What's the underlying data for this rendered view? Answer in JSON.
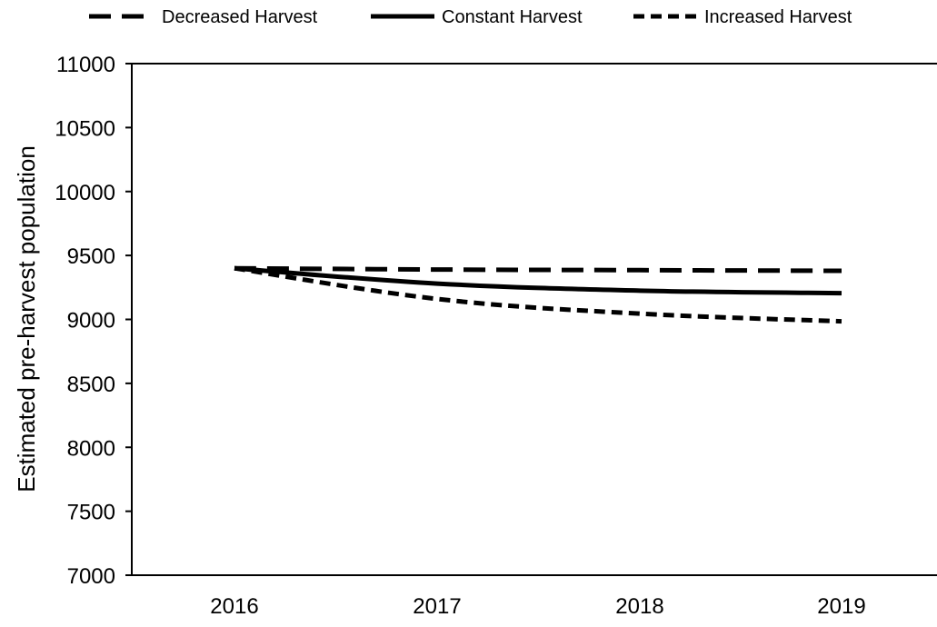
{
  "chart_data": {
    "type": "line",
    "title": "",
    "xlabel": "",
    "ylabel": "Estimated pre-harvest population",
    "categories": [
      "2016",
      "2017",
      "2018",
      "2019"
    ],
    "ylim": [
      7000,
      11000
    ],
    "yticks": [
      7000,
      7500,
      8000,
      8500,
      9000,
      9500,
      10000,
      10500,
      11000
    ],
    "grid": false,
    "legend_position": "top",
    "series": [
      {
        "name": "Decreased Harvest",
        "style": "long-dash",
        "color": "#000000",
        "values": [
          9400,
          9390,
          9385,
          9380
        ]
      },
      {
        "name": "Constant Harvest",
        "style": "solid",
        "color": "#000000",
        "values": [
          9400,
          9280,
          9225,
          9205
        ]
      },
      {
        "name": "Increased Harvest",
        "style": "short-dash",
        "color": "#000000",
        "values": [
          9400,
          9160,
          9045,
          8985
        ]
      }
    ]
  }
}
